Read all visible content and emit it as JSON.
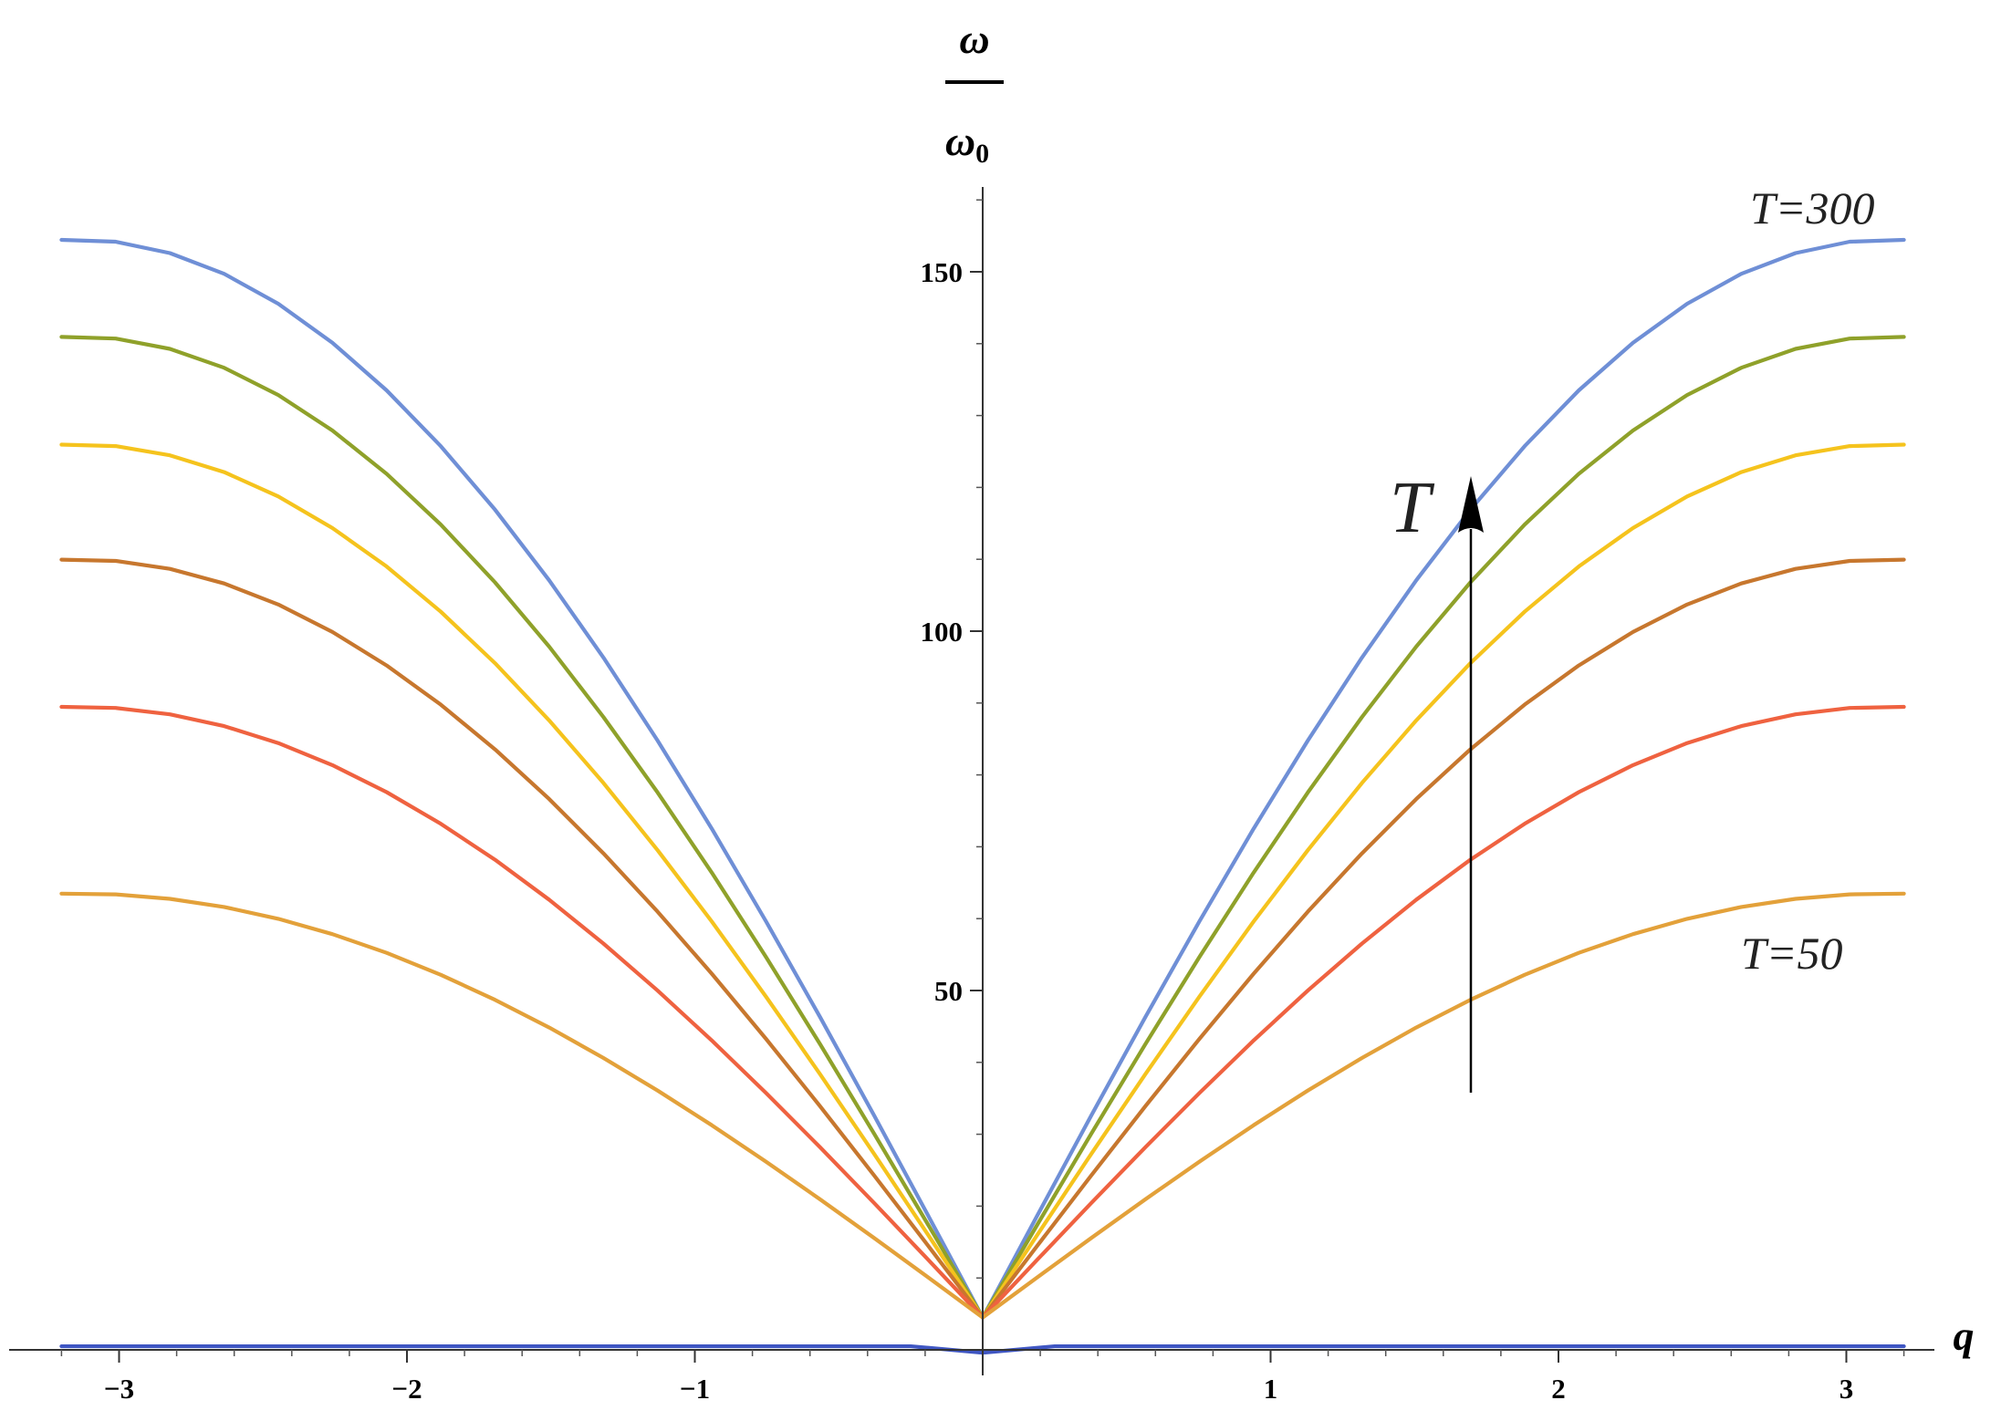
{
  "chart_data": {
    "type": "line",
    "xlabel": "q",
    "ylabel": {
      "numerator": "ω",
      "denominator": "ω",
      "denominator_subscript": "0"
    },
    "xlim": [
      -3.2,
      3.2
    ],
    "ylim": [
      -1,
      160
    ],
    "x_ticks": [
      {
        "value": -3,
        "label": "−3"
      },
      {
        "value": -2,
        "label": "−2"
      },
      {
        "value": -1,
        "label": "−1"
      },
      {
        "value": 1,
        "label": "1"
      },
      {
        "value": 2,
        "label": "2"
      },
      {
        "value": 3,
        "label": "3"
      }
    ],
    "y_ticks": [
      {
        "value": 50,
        "label": "50"
      },
      {
        "value": 100,
        "label": "100"
      },
      {
        "value": 150,
        "label": "150"
      }
    ],
    "grid": false,
    "series": [
      {
        "min": 4.5,
        "max": 154.5,
        "color": "#6f8fd6"
      },
      {
        "min": 4.5,
        "max": 141.0,
        "color": "#8fa12a"
      },
      {
        "min": 4.5,
        "max": 126.0,
        "color": "#f5c31d"
      },
      {
        "min": 4.5,
        "max": 110.0,
        "color": "#c7772e"
      },
      {
        "min": 4.5,
        "max": 89.5,
        "color": "#ef6240"
      },
      {
        "min": 4.5,
        "max": 63.5,
        "color": "#e3a13a"
      }
    ],
    "acoustic_branch": {
      "value": 0.5,
      "dip": -0.4,
      "color": "#3f56c2"
    },
    "annotations": {
      "top_curve_label": "T=300",
      "bottom_curve_label": "T=50",
      "arrow_label": "T"
    }
  }
}
